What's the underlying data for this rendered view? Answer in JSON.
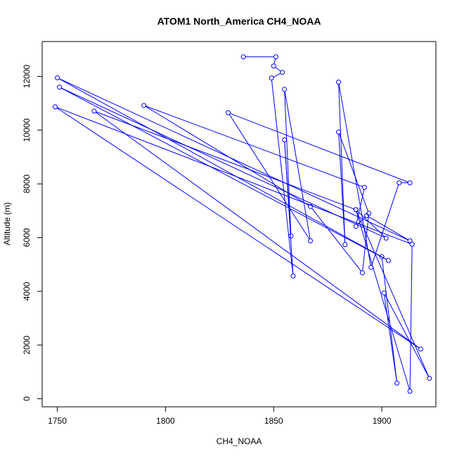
{
  "chart_data": {
    "type": "line",
    "title": "ATOM1 North_America CH4_NOAA",
    "xlabel": "CH4_NOAA",
    "ylabel": "Altitude (m)",
    "xlim": [
      1743,
      1925
    ],
    "ylim": [
      -300,
      13300
    ],
    "x_ticks": [
      1750,
      1800,
      1850,
      1900
    ],
    "y_ticks": [
      0,
      2000,
      4000,
      6000,
      8000,
      10000,
      12000
    ],
    "grid": false,
    "marker": "open-circle",
    "line_color": "#0000ff",
    "series": [
      {
        "points": [
          [
            1836.0,
            12730
          ],
          [
            1851.0,
            12730
          ],
          [
            1850.0,
            12390
          ],
          [
            1854.0,
            12150
          ],
          [
            1849.0,
            11940
          ],
          [
            1859.0,
            4570
          ],
          [
            1855.0,
            9640
          ],
          [
            1858.0,
            6060
          ],
          [
            1855.0,
            11520
          ],
          [
            1867.0,
            5880
          ],
          [
            1829.0,
            10650
          ],
          [
            1913.0,
            8040
          ],
          [
            1908.0,
            8040
          ],
          [
            1895.0,
            4890
          ],
          [
            1880.0,
            11790
          ],
          [
            1883.0,
            5740
          ],
          [
            1880.0,
            9930
          ],
          [
            1894.0,
            6900
          ],
          [
            1891.0,
            4690
          ],
          [
            1867.0,
            7160
          ],
          [
            1790.0,
            10920
          ],
          [
            1892.0,
            7870
          ],
          [
            1888.0,
            6420
          ],
          [
            1893.0,
            6820
          ],
          [
            1913.0,
            5880
          ],
          [
            1750.0,
            11950
          ],
          [
            1903.0,
            5150
          ],
          [
            1751.0,
            11600
          ],
          [
            1902.0,
            5980
          ],
          [
            1888.0,
            7040
          ],
          [
            1767.0,
            10710
          ],
          [
            1918.0,
            1850
          ],
          [
            1749.0,
            10870
          ],
          [
            1914.0,
            5750
          ],
          [
            1913.0,
            280
          ],
          [
            1888.0,
            7040
          ],
          [
            1922.0,
            760
          ],
          [
            1901.0,
            3940
          ],
          [
            1907.0,
            580
          ],
          [
            1900.0,
            5290
          ]
        ]
      }
    ]
  }
}
